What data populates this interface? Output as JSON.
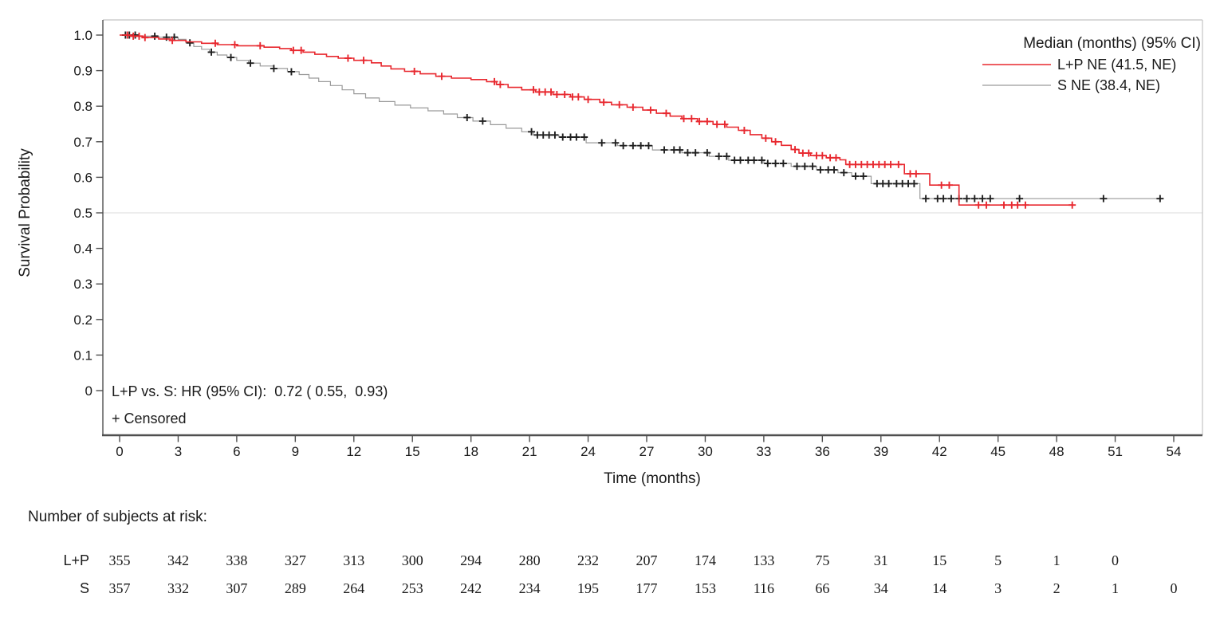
{
  "colors": {
    "lp": "#e8282f",
    "s_line": "#9a9a9a",
    "s_censor": "#1f1f1f",
    "axis": "#4f4f4f",
    "frame": "#c4c4c4",
    "refline": "#e2e2e2",
    "risk_lp": "#e8282f",
    "risk_s": "#2b2b2b",
    "text": "#1a1a1a"
  },
  "chart_data": {
    "type": "line",
    "subtype": "kaplan-meier-step-survival",
    "title": "",
    "xlabel": "Time (months)",
    "ylabel": "Survival Probability",
    "xlim": [
      0,
      54
    ],
    "ylim": [
      0,
      1.0
    ],
    "grid": "off",
    "reference_line_y": 0.5,
    "xticks": [
      0,
      3,
      6,
      9,
      12,
      15,
      18,
      21,
      24,
      27,
      30,
      33,
      36,
      39,
      42,
      45,
      48,
      51,
      54
    ],
    "ytick_values": [
      1.0,
      0.9,
      0.8,
      0.7,
      0.6,
      0.5,
      0.4,
      0.3,
      0.2,
      0.1,
      0
    ],
    "ytick_labels": [
      "1.0",
      "0.9",
      "0.8",
      "0.7",
      "0.6",
      "0.5",
      "0.4",
      "0.3",
      "0.2",
      "0.1",
      "0"
    ],
    "legend": {
      "position": "top-right",
      "title": "Median (months) (95% CI)",
      "entries": [
        {
          "group": "L+P",
          "label": "L+P NE (41.5, NE)",
          "median_months": "NE",
          "ci": "(41.5, NE)"
        },
        {
          "group": "S",
          "label": "S NE (38.4, NE)",
          "median_months": "NE",
          "ci": "(38.4, NE)"
        }
      ]
    },
    "annotation": [
      "L+P vs. S: HR (95% CI):  0.72 ( 0.55,  0.93)",
      "+ Censored"
    ],
    "series": [
      {
        "name": "L+P",
        "steps": [
          [
            0,
            1.0
          ],
          [
            0.6,
            0.997
          ],
          [
            1.2,
            0.993
          ],
          [
            2.0,
            0.989
          ],
          [
            2.6,
            0.985
          ],
          [
            3.4,
            0.981
          ],
          [
            4.2,
            0.977
          ],
          [
            5.0,
            0.973
          ],
          [
            6.0,
            0.97
          ],
          [
            7.4,
            0.966
          ],
          [
            8.2,
            0.962
          ],
          [
            8.8,
            0.957
          ],
          [
            9.4,
            0.952
          ],
          [
            10.0,
            0.946
          ],
          [
            10.6,
            0.94
          ],
          [
            11.2,
            0.935
          ],
          [
            12.0,
            0.929
          ],
          [
            12.9,
            0.922
          ],
          [
            13.4,
            0.913
          ],
          [
            13.9,
            0.905
          ],
          [
            14.6,
            0.898
          ],
          [
            15.4,
            0.891
          ],
          [
            16.2,
            0.884
          ],
          [
            17.0,
            0.879
          ],
          [
            18.0,
            0.875
          ],
          [
            18.8,
            0.869
          ],
          [
            19.3,
            0.861
          ],
          [
            19.9,
            0.853
          ],
          [
            20.6,
            0.846
          ],
          [
            21.3,
            0.84
          ],
          [
            22.2,
            0.833
          ],
          [
            23.1,
            0.826
          ],
          [
            23.8,
            0.819
          ],
          [
            24.6,
            0.811
          ],
          [
            25.2,
            0.804
          ],
          [
            26.0,
            0.797
          ],
          [
            26.8,
            0.789
          ],
          [
            27.5,
            0.78
          ],
          [
            28.2,
            0.772
          ],
          [
            28.8,
            0.765
          ],
          [
            29.6,
            0.757
          ],
          [
            30.4,
            0.749
          ],
          [
            31.1,
            0.741
          ],
          [
            31.7,
            0.732
          ],
          [
            32.3,
            0.72
          ],
          [
            32.9,
            0.71
          ],
          [
            33.4,
            0.7
          ],
          [
            33.9,
            0.69
          ],
          [
            34.4,
            0.678
          ],
          [
            34.8,
            0.668
          ],
          [
            35.4,
            0.661
          ],
          [
            36.2,
            0.655
          ],
          [
            36.9,
            0.649
          ],
          [
            37.2,
            0.636
          ],
          [
            40.2,
            0.61
          ],
          [
            41.5,
            0.578
          ],
          [
            43.0,
            0.522
          ]
        ],
        "end_time": 48.8,
        "censors": [
          0.4,
          0.7,
          1.0,
          1.3,
          2.7,
          4.9,
          5.9,
          7.2,
          8.9,
          9.3,
          11.7,
          12.5,
          15.1,
          16.5,
          19.2,
          19.5,
          21.2,
          21.5,
          21.8,
          22.1,
          22.4,
          22.8,
          23.2,
          23.5,
          24.0,
          24.8,
          25.6,
          26.3,
          27.2,
          28.0,
          28.9,
          29.3,
          29.7,
          30.1,
          30.6,
          31.0,
          32.0,
          33.1,
          33.6,
          34.6,
          35.0,
          35.3,
          35.7,
          36.0,
          36.4,
          36.7,
          37.4,
          37.7,
          38.0,
          38.3,
          38.6,
          38.9,
          39.2,
          39.5,
          39.9,
          40.5,
          40.8,
          42.1,
          42.5,
          44.0,
          44.4,
          45.3,
          45.7,
          46.0,
          46.4,
          48.8
        ]
      },
      {
        "name": "S",
        "steps": [
          [
            0,
            1.0
          ],
          [
            0.9,
            0.997
          ],
          [
            2.0,
            0.994
          ],
          [
            3.0,
            0.988
          ],
          [
            3.4,
            0.978
          ],
          [
            3.8,
            0.968
          ],
          [
            4.2,
            0.96
          ],
          [
            4.6,
            0.952
          ],
          [
            5.0,
            0.944
          ],
          [
            5.5,
            0.937
          ],
          [
            6.0,
            0.929
          ],
          [
            6.6,
            0.921
          ],
          [
            7.2,
            0.913
          ],
          [
            7.9,
            0.906
          ],
          [
            8.6,
            0.897
          ],
          [
            9.2,
            0.889
          ],
          [
            9.7,
            0.879
          ],
          [
            10.2,
            0.869
          ],
          [
            10.8,
            0.858
          ],
          [
            11.4,
            0.846
          ],
          [
            12.0,
            0.835
          ],
          [
            12.6,
            0.823
          ],
          [
            13.3,
            0.813
          ],
          [
            14.1,
            0.803
          ],
          [
            14.9,
            0.795
          ],
          [
            15.8,
            0.787
          ],
          [
            16.6,
            0.778
          ],
          [
            17.3,
            0.768
          ],
          [
            18.1,
            0.758
          ],
          [
            19.0,
            0.748
          ],
          [
            19.8,
            0.738
          ],
          [
            20.6,
            0.728
          ],
          [
            21.2,
            0.719
          ],
          [
            22.5,
            0.713
          ],
          [
            23.9,
            0.697
          ],
          [
            25.5,
            0.689
          ],
          [
            27.3,
            0.677
          ],
          [
            28.8,
            0.669
          ],
          [
            30.2,
            0.659
          ],
          [
            31.2,
            0.648
          ],
          [
            33.0,
            0.639
          ],
          [
            34.4,
            0.631
          ],
          [
            35.7,
            0.621
          ],
          [
            36.8,
            0.613
          ],
          [
            37.5,
            0.603
          ],
          [
            38.5,
            0.582
          ],
          [
            41.0,
            0.54
          ]
        ],
        "end_time": 53.3,
        "censors": [
          0.3,
          0.5,
          0.8,
          1.8,
          2.4,
          2.8,
          3.6,
          4.7,
          5.7,
          6.7,
          7.9,
          8.8,
          17.8,
          18.6,
          21.1,
          21.4,
          21.7,
          22.0,
          22.3,
          22.7,
          23.1,
          23.4,
          23.8,
          24.7,
          25.4,
          25.8,
          26.3,
          26.7,
          27.1,
          27.9,
          28.4,
          28.7,
          29.1,
          29.5,
          30.1,
          30.7,
          31.1,
          31.5,
          31.8,
          32.2,
          32.5,
          32.9,
          33.2,
          33.6,
          34.0,
          34.7,
          35.1,
          35.5,
          35.9,
          36.3,
          36.6,
          37.1,
          37.7,
          38.1,
          38.8,
          39.1,
          39.4,
          39.8,
          40.1,
          40.4,
          40.7,
          41.3,
          41.9,
          42.2,
          42.6,
          43.0,
          43.4,
          43.8,
          44.2,
          44.6,
          46.1,
          50.4,
          53.3
        ]
      }
    ]
  },
  "at_risk": {
    "header": "Number of subjects at risk:",
    "rows": [
      {
        "label": "L+P",
        "times": [
          0,
          3,
          6,
          9,
          12,
          15,
          18,
          21,
          24,
          27,
          30,
          33,
          36,
          39,
          42,
          45,
          48,
          51
        ],
        "counts": [
          355,
          342,
          338,
          327,
          313,
          300,
          294,
          280,
          232,
          207,
          174,
          133,
          75,
          31,
          15,
          5,
          1,
          0
        ]
      },
      {
        "label": "S",
        "times": [
          0,
          3,
          6,
          9,
          12,
          15,
          18,
          21,
          24,
          27,
          30,
          33,
          36,
          39,
          42,
          45,
          48,
          51,
          54
        ],
        "counts": [
          357,
          332,
          307,
          289,
          264,
          253,
          242,
          234,
          195,
          177,
          153,
          116,
          66,
          34,
          14,
          3,
          2,
          1,
          0
        ]
      }
    ]
  }
}
